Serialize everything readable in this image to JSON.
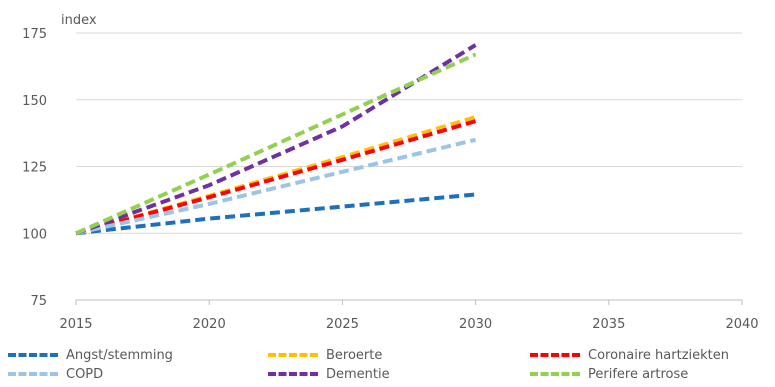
{
  "chart_data": {
    "type": "line",
    "ylabel": "index",
    "xlim": [
      2015,
      2040
    ],
    "ylim": [
      75,
      175
    ],
    "xticks": [
      2015,
      2020,
      2025,
      2030,
      2035,
      2040
    ],
    "yticks": [
      75,
      100,
      125,
      150,
      175
    ],
    "grid": "horizontal",
    "legend_position": "bottom",
    "series": [
      {
        "name": "Angst/stemming",
        "color": "#1f6fbf",
        "x": [
          2015,
          2020,
          2025,
          2030
        ],
        "values": [
          100,
          105.5,
          110,
          114.5
        ]
      },
      {
        "name": "Beroerte",
        "color": "#ffc000",
        "x": [
          2015,
          2020,
          2025,
          2030
        ],
        "values": [
          100,
          114,
          128.5,
          143.5
        ]
      },
      {
        "name": "Coronaire hartziekten",
        "color": "#ff0000",
        "x": [
          2015,
          2020,
          2025,
          2030
        ],
        "values": [
          100,
          113.5,
          127.5,
          142
        ]
      },
      {
        "name": "COPD",
        "color": "#9dc3e6",
        "x": [
          2015,
          2020,
          2025,
          2030
        ],
        "values": [
          100,
          111,
          123,
          135
        ]
      },
      {
        "name": "Dementie",
        "color": "#7030a0",
        "x": [
          2015,
          2020,
          2025,
          2030
        ],
        "values": [
          100,
          118,
          140,
          170.5
        ]
      },
      {
        "name": "Perifere artrose",
        "color": "#92d050",
        "x": [
          2015,
          2020,
          2025,
          2030
        ],
        "values": [
          100,
          122,
          144.5,
          167
        ]
      }
    ]
  }
}
